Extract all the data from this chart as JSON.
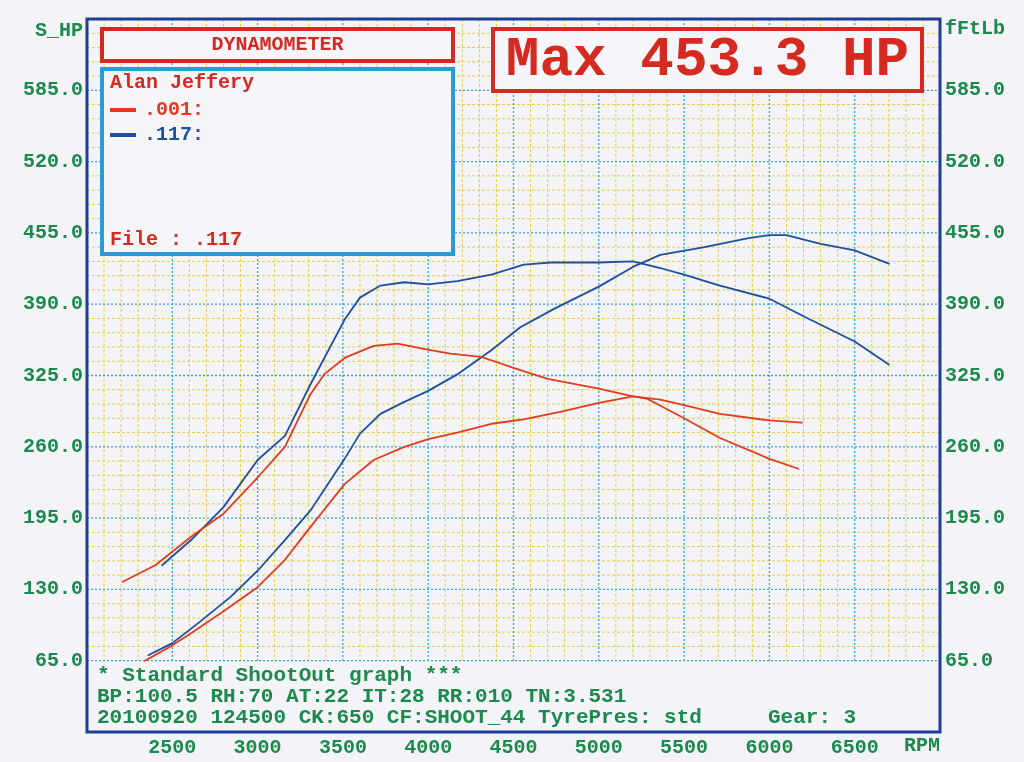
{
  "chart_data": {
    "type": "line",
    "title": "DYNAMOMETER",
    "subtitle": "Max 453.3 HP",
    "xlabel": "RPM",
    "ylabel": "S_HP",
    "y2label": "fFtLb",
    "annotations": [
      "Alan Jeffery",
      "File : .117",
      "* Standard ShootOut graph ***",
      "BP:100.5 RH:70 AT:22 IT:28 RR:010 TN:3.531",
      "20100920 124500 CK:650 CF:SHOOT_44 TyrePres: std",
      "Gear: 3"
    ],
    "xlim": [
      2000,
      7000
    ],
    "ylim": [
      0,
      650
    ],
    "y2lim": [
      0,
      650
    ],
    "xticks": [
      {
        "value": 2000,
        "label": null
      },
      {
        "value": 2100,
        "label": null
      },
      {
        "value": 2200,
        "label": null
      },
      {
        "value": 2300,
        "label": null
      },
      {
        "value": 2400,
        "label": null
      },
      2500,
      {
        "value": 2600,
        "label": null
      },
      {
        "value": 2700,
        "label": null
      },
      {
        "value": 2800,
        "label": null
      },
      {
        "value": 2900,
        "label": null
      },
      3000,
      {
        "value": 3100,
        "label": null
      },
      {
        "value": 3200,
        "label": null
      },
      {
        "value": 3300,
        "label": null
      },
      {
        "value": 3400,
        "label": null
      },
      3500,
      {
        "value": 3600,
        "label": null
      },
      {
        "value": 3700,
        "label": null
      },
      {
        "value": 3800,
        "label": null
      },
      {
        "value": 3900,
        "label": null
      },
      4000,
      {
        "value": 4100,
        "label": null
      },
      {
        "value": 4200,
        "label": null
      },
      {
        "value": 4300,
        "label": null
      },
      {
        "value": 4400,
        "label": null
      },
      4500,
      {
        "value": 4600,
        "label": null
      },
      {
        "value": 4700,
        "label": null
      },
      {
        "value": 4800,
        "label": null
      },
      {
        "value": 4900,
        "label": null
      },
      5000,
      {
        "value": 5100,
        "label": null
      },
      {
        "value": 5200,
        "label": null
      },
      {
        "value": 5300,
        "label": null
      },
      {
        "value": 5400,
        "label": null
      },
      5500,
      {
        "value": 5600,
        "label": null
      },
      {
        "value": 5700,
        "label": null
      },
      {
        "value": 5800,
        "label": null
      },
      {
        "value": 5900,
        "label": null
      },
      6000,
      {
        "value": 6100,
        "label": null
      },
      {
        "value": 6200,
        "label": null
      },
      {
        "value": 6300,
        "label": null
      },
      {
        "value": 6400,
        "label": null
      },
      6500,
      {
        "value": 6600,
        "label": null
      },
      {
        "value": 6700,
        "label": null
      },
      {
        "value": 6800,
        "label": null
      },
      {
        "value": 6900,
        "label": null
      },
      {
        "value": 7000,
        "label": null
      }
    ],
    "yticks": [
      {
        "value": 65,
        "label": "65.0"
      },
      {
        "value": 78,
        "label": null
      },
      {
        "value": 91,
        "label": null
      },
      {
        "value": 104,
        "label": null
      },
      {
        "value": 117,
        "label": null
      },
      {
        "value": 130,
        "label": "130.0"
      },
      {
        "value": 143,
        "label": null
      },
      {
        "value": 156,
        "label": null
      },
      {
        "value": 169,
        "label": null
      },
      {
        "value": 182,
        "label": null
      },
      {
        "value": 195,
        "label": "195.0"
      },
      {
        "value": 208,
        "label": null
      },
      {
        "value": 221,
        "label": null
      },
      {
        "value": 234,
        "label": null
      },
      {
        "value": 247,
        "label": null
      },
      {
        "value": 260,
        "label": "260.0"
      },
      {
        "value": 273,
        "label": null
      },
      {
        "value": 286,
        "label": null
      },
      {
        "value": 299,
        "label": null
      },
      {
        "value": 312,
        "label": null
      },
      {
        "value": 325,
        "label": "325.0"
      },
      {
        "value": 338,
        "label": null
      },
      {
        "value": 351,
        "label": null
      },
      {
        "value": 364,
        "label": null
      },
      {
        "value": 377,
        "label": null
      },
      {
        "value": 390,
        "label": "390.0"
      },
      {
        "value": 403,
        "label": null
      },
      {
        "value": 416,
        "label": null
      },
      {
        "value": 429,
        "label": null
      },
      {
        "value": 442,
        "label": null
      },
      {
        "value": 455,
        "label": "455.0"
      },
      {
        "value": 468,
        "label": null
      },
      {
        "value": 481,
        "label": null
      },
      {
        "value": 494,
        "label": null
      },
      {
        "value": 507,
        "label": null
      },
      {
        "value": 520,
        "label": "520.0"
      },
      {
        "value": 533,
        "label": null
      },
      {
        "value": 546,
        "label": null
      },
      {
        "value": 559,
        "label": null
      },
      {
        "value": 572,
        "label": null
      },
      {
        "value": 585,
        "label": "585.0"
      },
      {
        "value": 598,
        "label": null
      },
      {
        "value": 611,
        "label": null
      },
      {
        "value": 624,
        "label": null
      },
      {
        "value": 637,
        "label": null
      },
      {
        "value": 650,
        "label": null
      }
    ],
    "y2ticks": [
      {
        "value": 65,
        "label": "65.0"
      },
      {
        "value": 130,
        "label": "130.0"
      },
      {
        "value": 195,
        "label": "195.0"
      },
      {
        "value": 260,
        "label": "260.0"
      },
      {
        "value": 325,
        "label": "325.0"
      },
      {
        "value": 390,
        "label": "390.0"
      },
      {
        "value": 455,
        "label": "455.0"
      },
      {
        "value": 520,
        "label": "520.0"
      },
      {
        "value": 585,
        "label": "585.0"
      }
    ],
    "grid": true,
    "legend": "top left",
    "series": [
      {
        "name": ".001:",
        "color": "#e33b1e",
        "x": [
          2340,
          2500,
          2610,
          2800,
          3000,
          3160,
          3310,
          3510,
          3680,
          3860,
          4000,
          4170,
          4370,
          4560,
          4780,
          5000,
          5200,
          5360,
          5500,
          5710,
          6000,
          6190
        ],
        "values": [
          65,
          79,
          90,
          110,
          132,
          157,
          187,
          226,
          248,
          260,
          267,
          273,
          281,
          285,
          292,
          300,
          306,
          303,
          298,
          290,
          284,
          282
        ]
      },
      {
        "color": "#e33b1e",
        "axis": "y2",
        "x": [
          2210,
          2400,
          2610,
          2800,
          3000,
          3160,
          3310,
          3390,
          3510,
          3680,
          3820,
          3980,
          4130,
          4310,
          4500,
          4700,
          5000,
          5200,
          5280,
          5500,
          5710,
          6000,
          6170
        ],
        "values": [
          137,
          152,
          178,
          199,
          232,
          260,
          308,
          326,
          341,
          352,
          354,
          349,
          345,
          342,
          332,
          322,
          313,
          306,
          304,
          286,
          268,
          249,
          240
        ]
      },
      {
        "name": ".117:",
        "color": "#1d4f9f",
        "x": [
          2360,
          2500,
          2650,
          2840,
          3000,
          3160,
          3310,
          3510,
          3600,
          3720,
          3860,
          4000,
          4170,
          4370,
          4540,
          4740,
          5000,
          5200,
          5360,
          5620,
          5870,
          6000,
          6100,
          6300,
          6500,
          6700
        ],
        "values": [
          70,
          81,
          99,
          123,
          147,
          175,
          202,
          249,
          272,
          290,
          301,
          311,
          326,
          348,
          369,
          386,
          406,
          424,
          435,
          442,
          450,
          453,
          453,
          445,
          439,
          427
        ]
      },
      {
        "color": "#1d4f9f",
        "axis": "y2",
        "x": [
          2440,
          2610,
          2800,
          3000,
          3160,
          3310,
          3510,
          3600,
          3720,
          3860,
          4000,
          4170,
          4370,
          4560,
          4720,
          5000,
          5200,
          5360,
          5500,
          5710,
          6000,
          6200,
          6500,
          6700
        ],
        "values": [
          152,
          175,
          205,
          248,
          270,
          317,
          376,
          396,
          407,
          410,
          408,
          411,
          417,
          426,
          428,
          428,
          429,
          423,
          417,
          407,
          395,
          379,
          356,
          335
        ]
      }
    ]
  }
}
